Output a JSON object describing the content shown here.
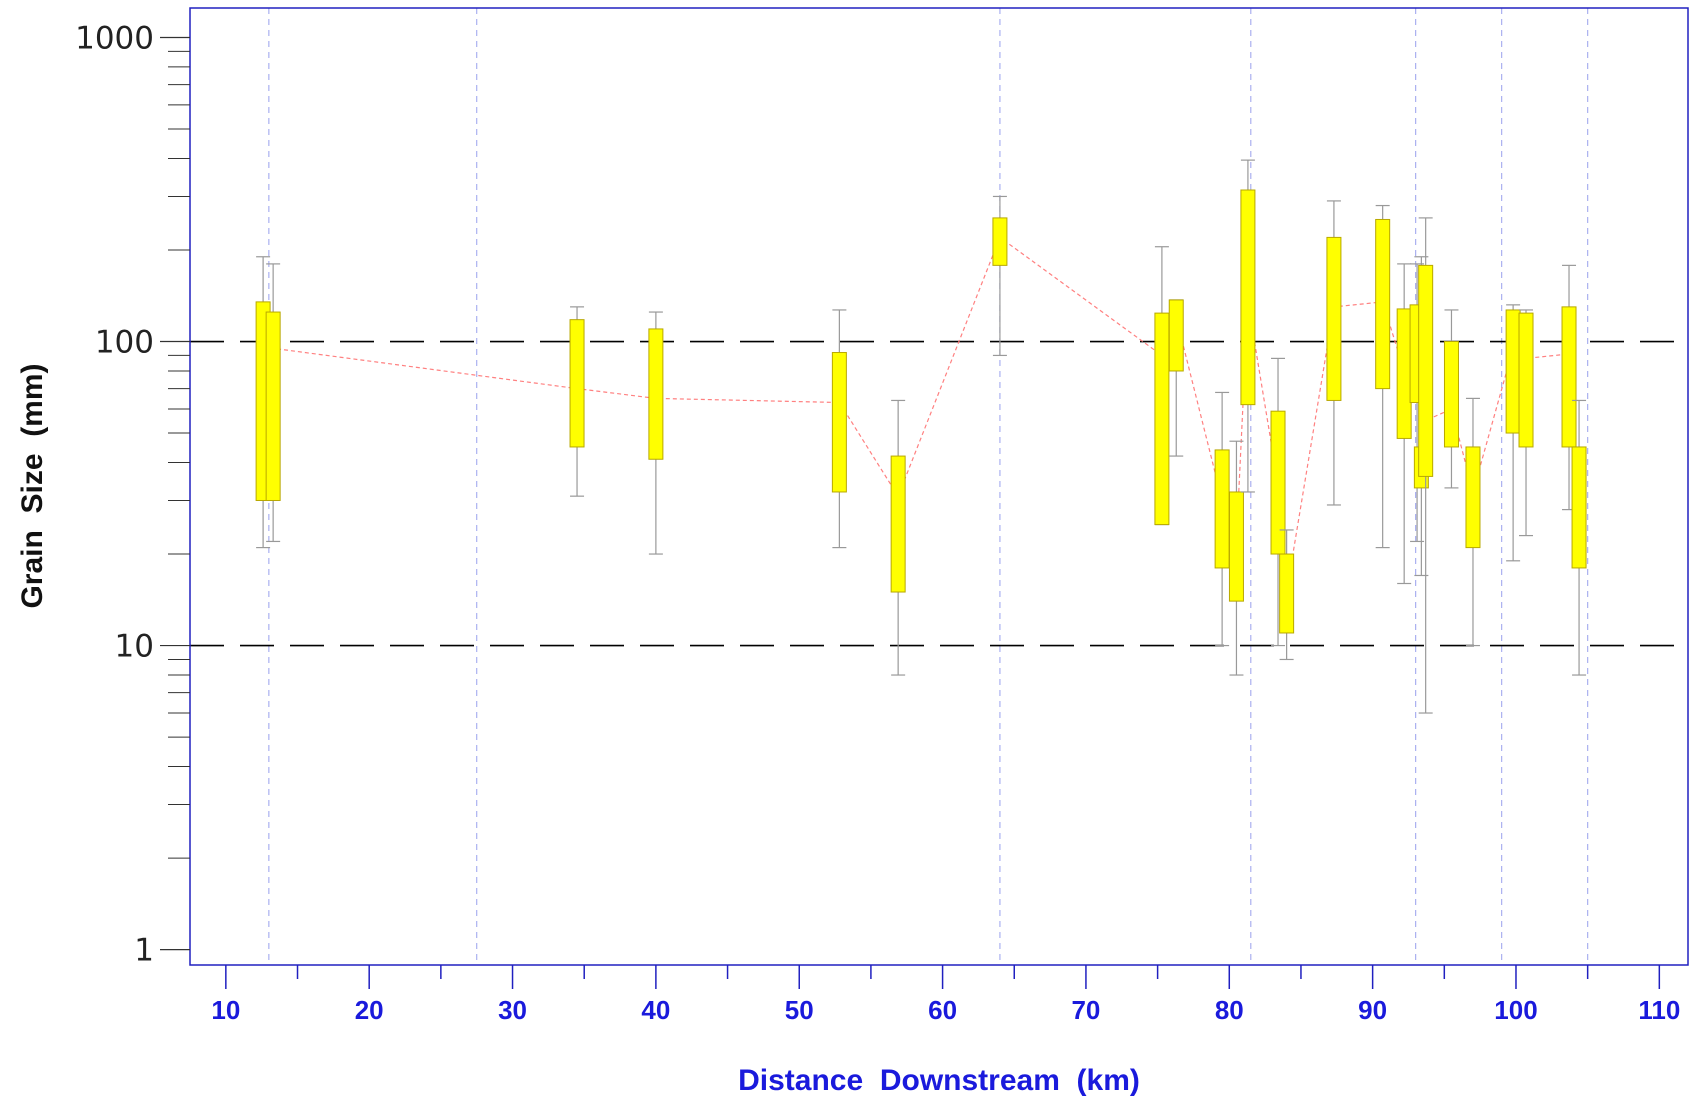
{
  "chart_data": {
    "type": "box",
    "xlabel": "Distance  Downstream  (km)",
    "ylabel": "Grain  Size  (mm)",
    "xlim": [
      7.5,
      112
    ],
    "x_ticks": [
      10,
      20,
      30,
      40,
      50,
      60,
      70,
      80,
      90,
      100,
      110
    ],
    "ylim": [
      0.89,
      1250
    ],
    "y_scale": "log",
    "y_ticks": [
      1,
      10,
      100,
      1000
    ],
    "reference_lines_y": [
      10,
      100
    ],
    "vertical_guides_x": [
      13,
      27.5,
      64,
      81.5,
      93,
      99,
      105
    ],
    "colors": {
      "box_fill": "#ffff00",
      "box_stroke": "#b8a800",
      "whisker": "#999999",
      "median_line": "#ff8080",
      "guide": "#aab0f0",
      "frame": "#2020c0",
      "x_label": "#1a1adc",
      "reference_line": "#000000"
    },
    "boxes": [
      {
        "x": 12.6,
        "q1": 30,
        "q3": 135,
        "min": 21,
        "max": 190,
        "median": 95
      },
      {
        "x": 13.3,
        "q1": 30,
        "q3": 125,
        "min": 22,
        "max": 180,
        "median": 95
      },
      {
        "x": 34.5,
        "q1": 45,
        "q3": 118,
        "min": 31,
        "max": 130,
        "median": 70
      },
      {
        "x": 40,
        "q1": 41,
        "q3": 110,
        "min": 20,
        "max": 125,
        "median": 65
      },
      {
        "x": 52.8,
        "q1": 32,
        "q3": 92,
        "min": 21,
        "max": 127,
        "median": 63
      },
      {
        "x": 56.9,
        "q1": 15,
        "q3": 42,
        "min": 8,
        "max": 64,
        "median": 31
      },
      {
        "x": 64,
        "q1": 178,
        "q3": 255,
        "min": 90,
        "max": 300,
        "median": 220
      },
      {
        "x": 75.3,
        "q1": 25,
        "q3": 124,
        "min": 25,
        "max": 205,
        "median": 90
      },
      {
        "x": 76.3,
        "q1": 80,
        "q3": 137,
        "min": 42,
        "max": 137,
        "median": 120
      },
      {
        "x": 79.5,
        "q1": 18,
        "q3": 44,
        "min": 10,
        "max": 68,
        "median": 30
      },
      {
        "x": 80.5,
        "q1": 14,
        "q3": 32,
        "min": 8,
        "max": 47,
        "median": 22
      },
      {
        "x": 81.3,
        "q1": 62,
        "q3": 315,
        "min": 32,
        "max": 395,
        "median": 135
      },
      {
        "x": 83.4,
        "q1": 20,
        "q3": 59,
        "min": 10,
        "max": 88,
        "median": 34
      },
      {
        "x": 84,
        "q1": 11,
        "q3": 20,
        "min": 9,
        "max": 24,
        "median": 15
      },
      {
        "x": 87.3,
        "q1": 64,
        "q3": 220,
        "min": 29,
        "max": 290,
        "median": 130
      },
      {
        "x": 90.7,
        "q1": 70,
        "q3": 252,
        "min": 21,
        "max": 280,
        "median": 135
      },
      {
        "x": 92.2,
        "q1": 48,
        "q3": 128,
        "min": 16,
        "max": 180,
        "median": 80
      },
      {
        "x": 93.1,
        "q1": 63,
        "q3": 132,
        "min": 22,
        "max": 180,
        "median": 95
      },
      {
        "x": 93.4,
        "q1": 33,
        "q3": 45,
        "min": 17,
        "max": 190,
        "median": 40
      },
      {
        "x": 93.7,
        "q1": 36,
        "q3": 178,
        "min": 6,
        "max": 255,
        "median": 55
      },
      {
        "x": 95.5,
        "q1": 45,
        "q3": 100,
        "min": 33,
        "max": 127,
        "median": 60
      },
      {
        "x": 97,
        "q1": 21,
        "q3": 45,
        "min": 10,
        "max": 65,
        "median": 32
      },
      {
        "x": 99.8,
        "q1": 50,
        "q3": 127,
        "min": 19,
        "max": 132,
        "median": 95
      },
      {
        "x": 100.7,
        "q1": 45,
        "q3": 124,
        "min": 23,
        "max": 127,
        "median": 88
      },
      {
        "x": 103.7,
        "q1": 45,
        "q3": 130,
        "min": 28,
        "max": 178,
        "median": 91
      },
      {
        "x": 104.4,
        "q1": 18,
        "q3": 45,
        "min": 8,
        "max": 64,
        "median": 30
      }
    ]
  }
}
